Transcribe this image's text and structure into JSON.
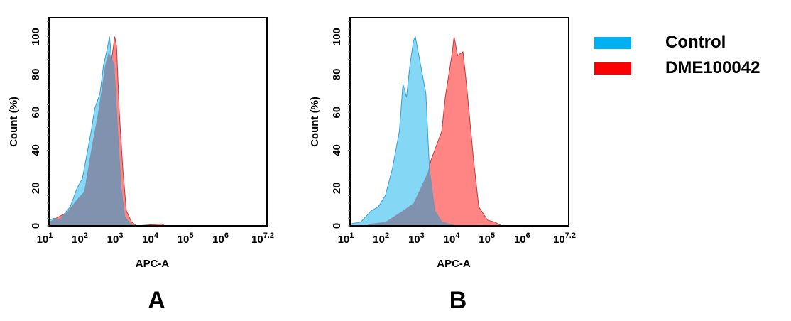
{
  "colors": {
    "control_fill": "#84d8f6",
    "control_line": "#3a9fcf",
    "sample_fill": "#ff8585",
    "sample_line": "#c23a3a",
    "overlap_fill": "#8192ae",
    "control_legend": "#00b0f0",
    "sample_legend": "#ff0000"
  },
  "legend": {
    "position": "right",
    "items": [
      {
        "label": "Control",
        "color": "#00b0f0"
      },
      {
        "label": "DME100042",
        "color": "#ff0000"
      }
    ]
  },
  "chart_data": [
    {
      "type": "area",
      "panel_label": "A",
      "xlabel": "APC-A",
      "ylabel": "Count  (%)",
      "xscale": "log",
      "xlim": [
        10,
        15848932
      ],
      "ylim": [
        0,
        110
      ],
      "xticks": [
        {
          "base": "10",
          "exp": "1"
        },
        {
          "base": "10",
          "exp": "2"
        },
        {
          "base": "10",
          "exp": "3"
        },
        {
          "base": "10",
          "exp": "4"
        },
        {
          "base": "10",
          "exp": "5"
        },
        {
          "base": "10",
          "exp": "6"
        },
        {
          "base": "10",
          "exp": "7.2"
        }
      ],
      "yticks": [
        "0",
        "20",
        "40",
        "60",
        "80",
        "100"
      ],
      "series": [
        {
          "name": "Control",
          "x": [
            10,
            14,
            20,
            32,
            40,
            63,
            89,
            126,
            158,
            200,
            282,
            355,
            447,
            525,
            603,
            708,
            891,
            1122,
            1413,
            1995,
            3162
          ],
          "y": [
            3,
            4,
            3,
            8,
            10,
            20,
            25,
            40,
            50,
            62,
            70,
            85,
            93,
            100,
            88,
            85,
            50,
            20,
            5,
            1,
            0
          ]
        },
        {
          "name": "DME100042",
          "x": [
            10,
            20,
            32,
            63,
            100,
            158,
            251,
            398,
            501,
            603,
            741,
            832,
            1000,
            1259,
            1585,
            2239,
            3162,
            15849,
            19953
          ],
          "y": [
            2,
            5,
            7,
            14,
            18,
            40,
            60,
            85,
            92,
            88,
            100,
            95,
            60,
            30,
            8,
            2,
            0,
            1,
            0
          ]
        }
      ]
    },
    {
      "type": "area",
      "panel_label": "B",
      "xlabel": "APC-A",
      "ylabel": "Count  (%)",
      "xscale": "log",
      "xlim": [
        10,
        15848932
      ],
      "ylim": [
        0,
        110
      ],
      "xticks": [
        {
          "base": "10",
          "exp": "1"
        },
        {
          "base": "10",
          "exp": "2"
        },
        {
          "base": "10",
          "exp": "3"
        },
        {
          "base": "10",
          "exp": "4"
        },
        {
          "base": "10",
          "exp": "5"
        },
        {
          "base": "10",
          "exp": "6"
        },
        {
          "base": "10",
          "exp": "7.2"
        }
      ],
      "yticks": [
        "0",
        "20",
        "40",
        "60",
        "80",
        "100"
      ],
      "series": [
        {
          "name": "Control",
          "x": [
            10,
            20,
            40,
            63,
            100,
            158,
            251,
            316,
            398,
            501,
            631,
            708,
            891,
            1122,
            1413,
            1778,
            2512,
            3981,
            6310,
            10000
          ],
          "y": [
            1,
            2,
            8,
            10,
            16,
            30,
            50,
            75,
            68,
            85,
            98,
            100,
            90,
            80,
            70,
            30,
            8,
            2,
            1,
            0
          ]
        },
        {
          "name": "DME100042",
          "x": [
            32,
            100,
            316,
            631,
            1000,
            1585,
            1995,
            2512,
            3981,
            5012,
            6310,
            7943,
            8913,
            11220,
            15849,
            19953,
            31623,
            44668,
            79433,
            125893,
            199526
          ],
          "y": [
            1,
            2,
            8,
            12,
            20,
            28,
            35,
            40,
            50,
            68,
            80,
            92,
            100,
            90,
            92,
            75,
            35,
            10,
            3,
            2,
            0
          ]
        }
      ]
    }
  ]
}
